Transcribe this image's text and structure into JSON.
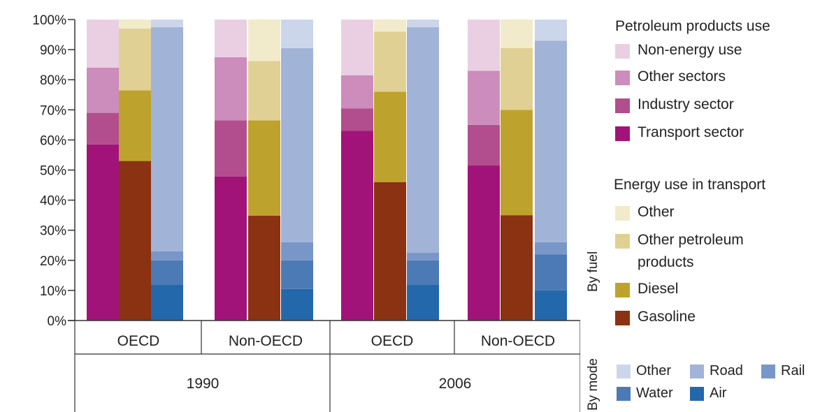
{
  "chart_data": {
    "type": "bar",
    "stacked": true,
    "y_tick_labels": [
      "0%",
      "10%",
      "20%",
      "30%",
      "40%",
      "50%",
      "60%",
      "70%",
      "80%",
      "90%",
      "100%"
    ],
    "ylim": [
      0,
      100
    ],
    "groups": [
      {
        "year": "1990",
        "regions": [
          "OECD",
          "Non-OECD"
        ]
      },
      {
        "year": "2006",
        "regions": [
          "OECD",
          "Non-OECD"
        ]
      }
    ],
    "categories": [
      "1990 OECD",
      "1990 Non-OECD",
      "2006 OECD",
      "2006 Non-OECD"
    ],
    "petroleum_products_use": {
      "title": "Petroleum  products use",
      "series": [
        {
          "name": "Transport sector",
          "color": "#a2137a",
          "values": [
            58.5,
            47.8,
            63,
            51.5
          ]
        },
        {
          "name": "Industry sector",
          "color": "#b24d8e",
          "values": [
            10.5,
            18.7,
            7.5,
            13.5
          ]
        },
        {
          "name": "Other sectors",
          "color": "#cc8cbc",
          "values": [
            15,
            21,
            11,
            18
          ]
        },
        {
          "name": "Non-energy use",
          "color": "#eacfe2",
          "values": [
            16,
            12.5,
            18.5,
            17
          ]
        }
      ]
    },
    "energy_use_in_transport": {
      "title": "Energy use in transport",
      "by_fuel_label": "By fuel",
      "series": [
        {
          "name": "Gasoline",
          "color": "#8a3212",
          "values": [
            53,
            34.8,
            46,
            35
          ]
        },
        {
          "name": "Diesel",
          "color": "#bea22e",
          "values": [
            23.5,
            31.7,
            30,
            35
          ]
        },
        {
          "name": "Other petroleum products",
          "label_line1": "Other petroleum",
          "label_line2": "products",
          "color": "#e1d093",
          "values": [
            20.5,
            19.7,
            20,
            20.5
          ]
        },
        {
          "name": "Other",
          "color": "#f1ebcb",
          "values": [
            3,
            13.8,
            4,
            9.5
          ]
        }
      ]
    },
    "by_mode": {
      "label": "By mode",
      "series": [
        {
          "name": "Air",
          "color": "#2368ab",
          "values": [
            12,
            10.5,
            12,
            10
          ]
        },
        {
          "name": "Water",
          "color": "#4c7ab4",
          "values": [
            8,
            9.5,
            8,
            12
          ]
        },
        {
          "name": "Rail",
          "color": "#7897c8",
          "values": [
            3,
            6,
            2.5,
            4
          ]
        },
        {
          "name": "Road",
          "color": "#a2b3d8",
          "values": [
            74.5,
            64.5,
            75,
            67
          ]
        },
        {
          "name": "Other",
          "color": "#ccd6ea",
          "values": [
            2.5,
            9.5,
            2.5,
            7
          ]
        }
      ]
    }
  }
}
